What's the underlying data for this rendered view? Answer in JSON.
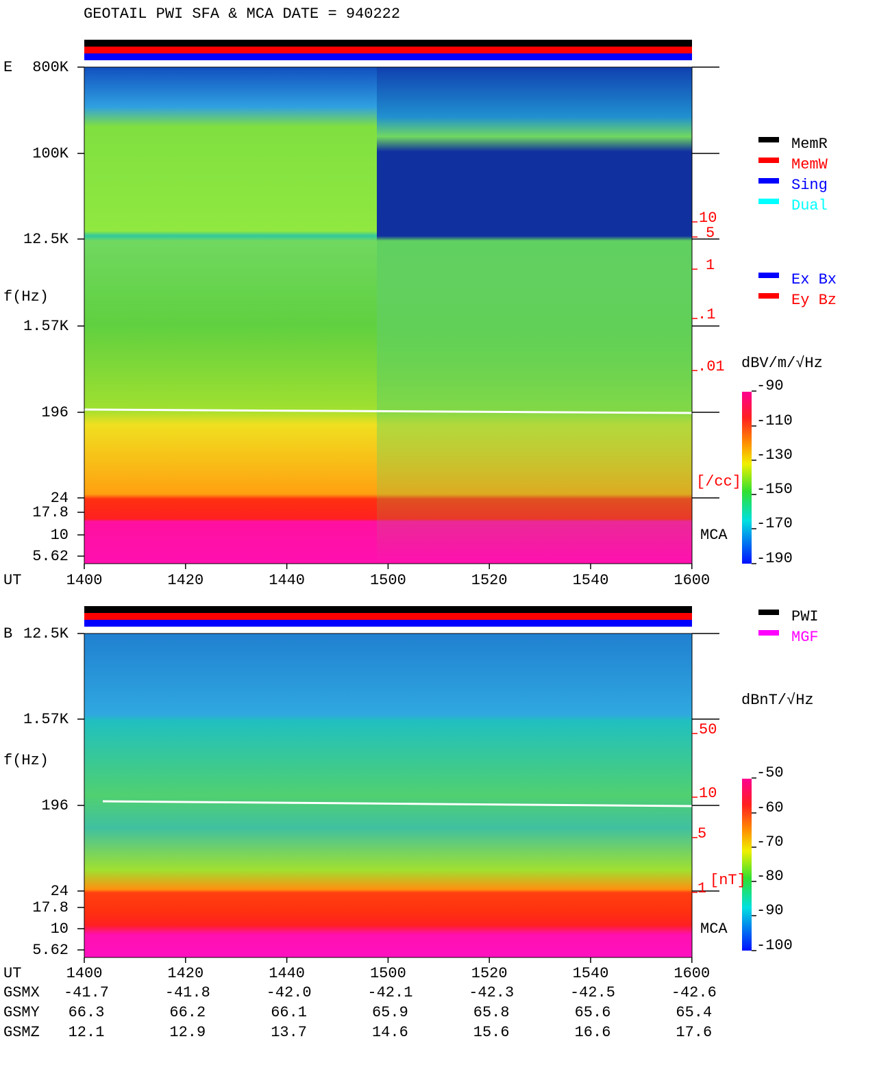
{
  "header": {
    "title": "GEOTAIL  PWI SFA & MCA   DATE = 940222"
  },
  "panels": [
    {
      "label": "E",
      "y_axis_label": "f(Hz)",
      "freq_ticks": [
        "800K",
        "100K",
        "12.5K",
        "1.57K",
        "196",
        "24",
        "17.8",
        "10",
        "5.62"
      ],
      "time_axis_label": "UT",
      "time_ticks": [
        "1400",
        "1420",
        "1440",
        "1500",
        "1520",
        "1540",
        "1600"
      ],
      "density_ticks": [
        "10",
        "5",
        "1",
        ".1",
        ".01"
      ],
      "density_unit": "[/cc]",
      "mca_label": "MCA",
      "colorbar_unit": "dBV/m/√Hz",
      "colorbar_ticks": [
        "-90",
        "-110",
        "-130",
        "-150",
        "-170",
        "-190"
      ],
      "legend": [
        {
          "label": "MemR",
          "color": "#000000"
        },
        {
          "label": "MemW",
          "color": "#ff0000"
        },
        {
          "label": "Sing",
          "color": "#0000ff"
        },
        {
          "label": "Dual",
          "color": "#00ffff"
        }
      ],
      "legend2": [
        {
          "label": "Ex Bx",
          "color": "#0000ff"
        },
        {
          "label": "Ey Bz",
          "color": "#ff0000"
        }
      ]
    },
    {
      "label": "B",
      "y_axis_label": "f(Hz)",
      "freq_ticks": [
        "12.5K",
        "1.57K",
        "196",
        "24",
        "17.8",
        "10",
        "5.62"
      ],
      "time_axis_label": "UT",
      "time_ticks": [
        "1400",
        "1420",
        "1440",
        "1500",
        "1520",
        "1540",
        "1600"
      ],
      "density_ticks": [
        "50",
        "10",
        "5",
        "1"
      ],
      "density_unit": "[nT]",
      "mca_label": "MCA",
      "colorbar_unit": "dBnT/√Hz",
      "colorbar_ticks": [
        "-50",
        "-60",
        "-70",
        "-80",
        "-90",
        "-100"
      ],
      "legend": [
        {
          "label": "PWI",
          "color": "#000000"
        },
        {
          "label": "MGF",
          "color": "#ff00ff"
        }
      ]
    }
  ],
  "orbit": {
    "rows": [
      {
        "label": "GSMX",
        "values": [
          "-41.7",
          "-41.8",
          "-42.0",
          "-42.1",
          "-42.3",
          "-42.5",
          "-42.6"
        ]
      },
      {
        "label": "GSMY",
        "values": [
          "66.3",
          "66.2",
          "66.1",
          "65.9",
          "65.8",
          "65.6",
          "65.4"
        ]
      },
      {
        "label": "GSMZ",
        "values": [
          "12.1",
          "12.9",
          "13.7",
          "14.6",
          "15.6",
          "16.6",
          "17.6"
        ]
      }
    ]
  }
}
